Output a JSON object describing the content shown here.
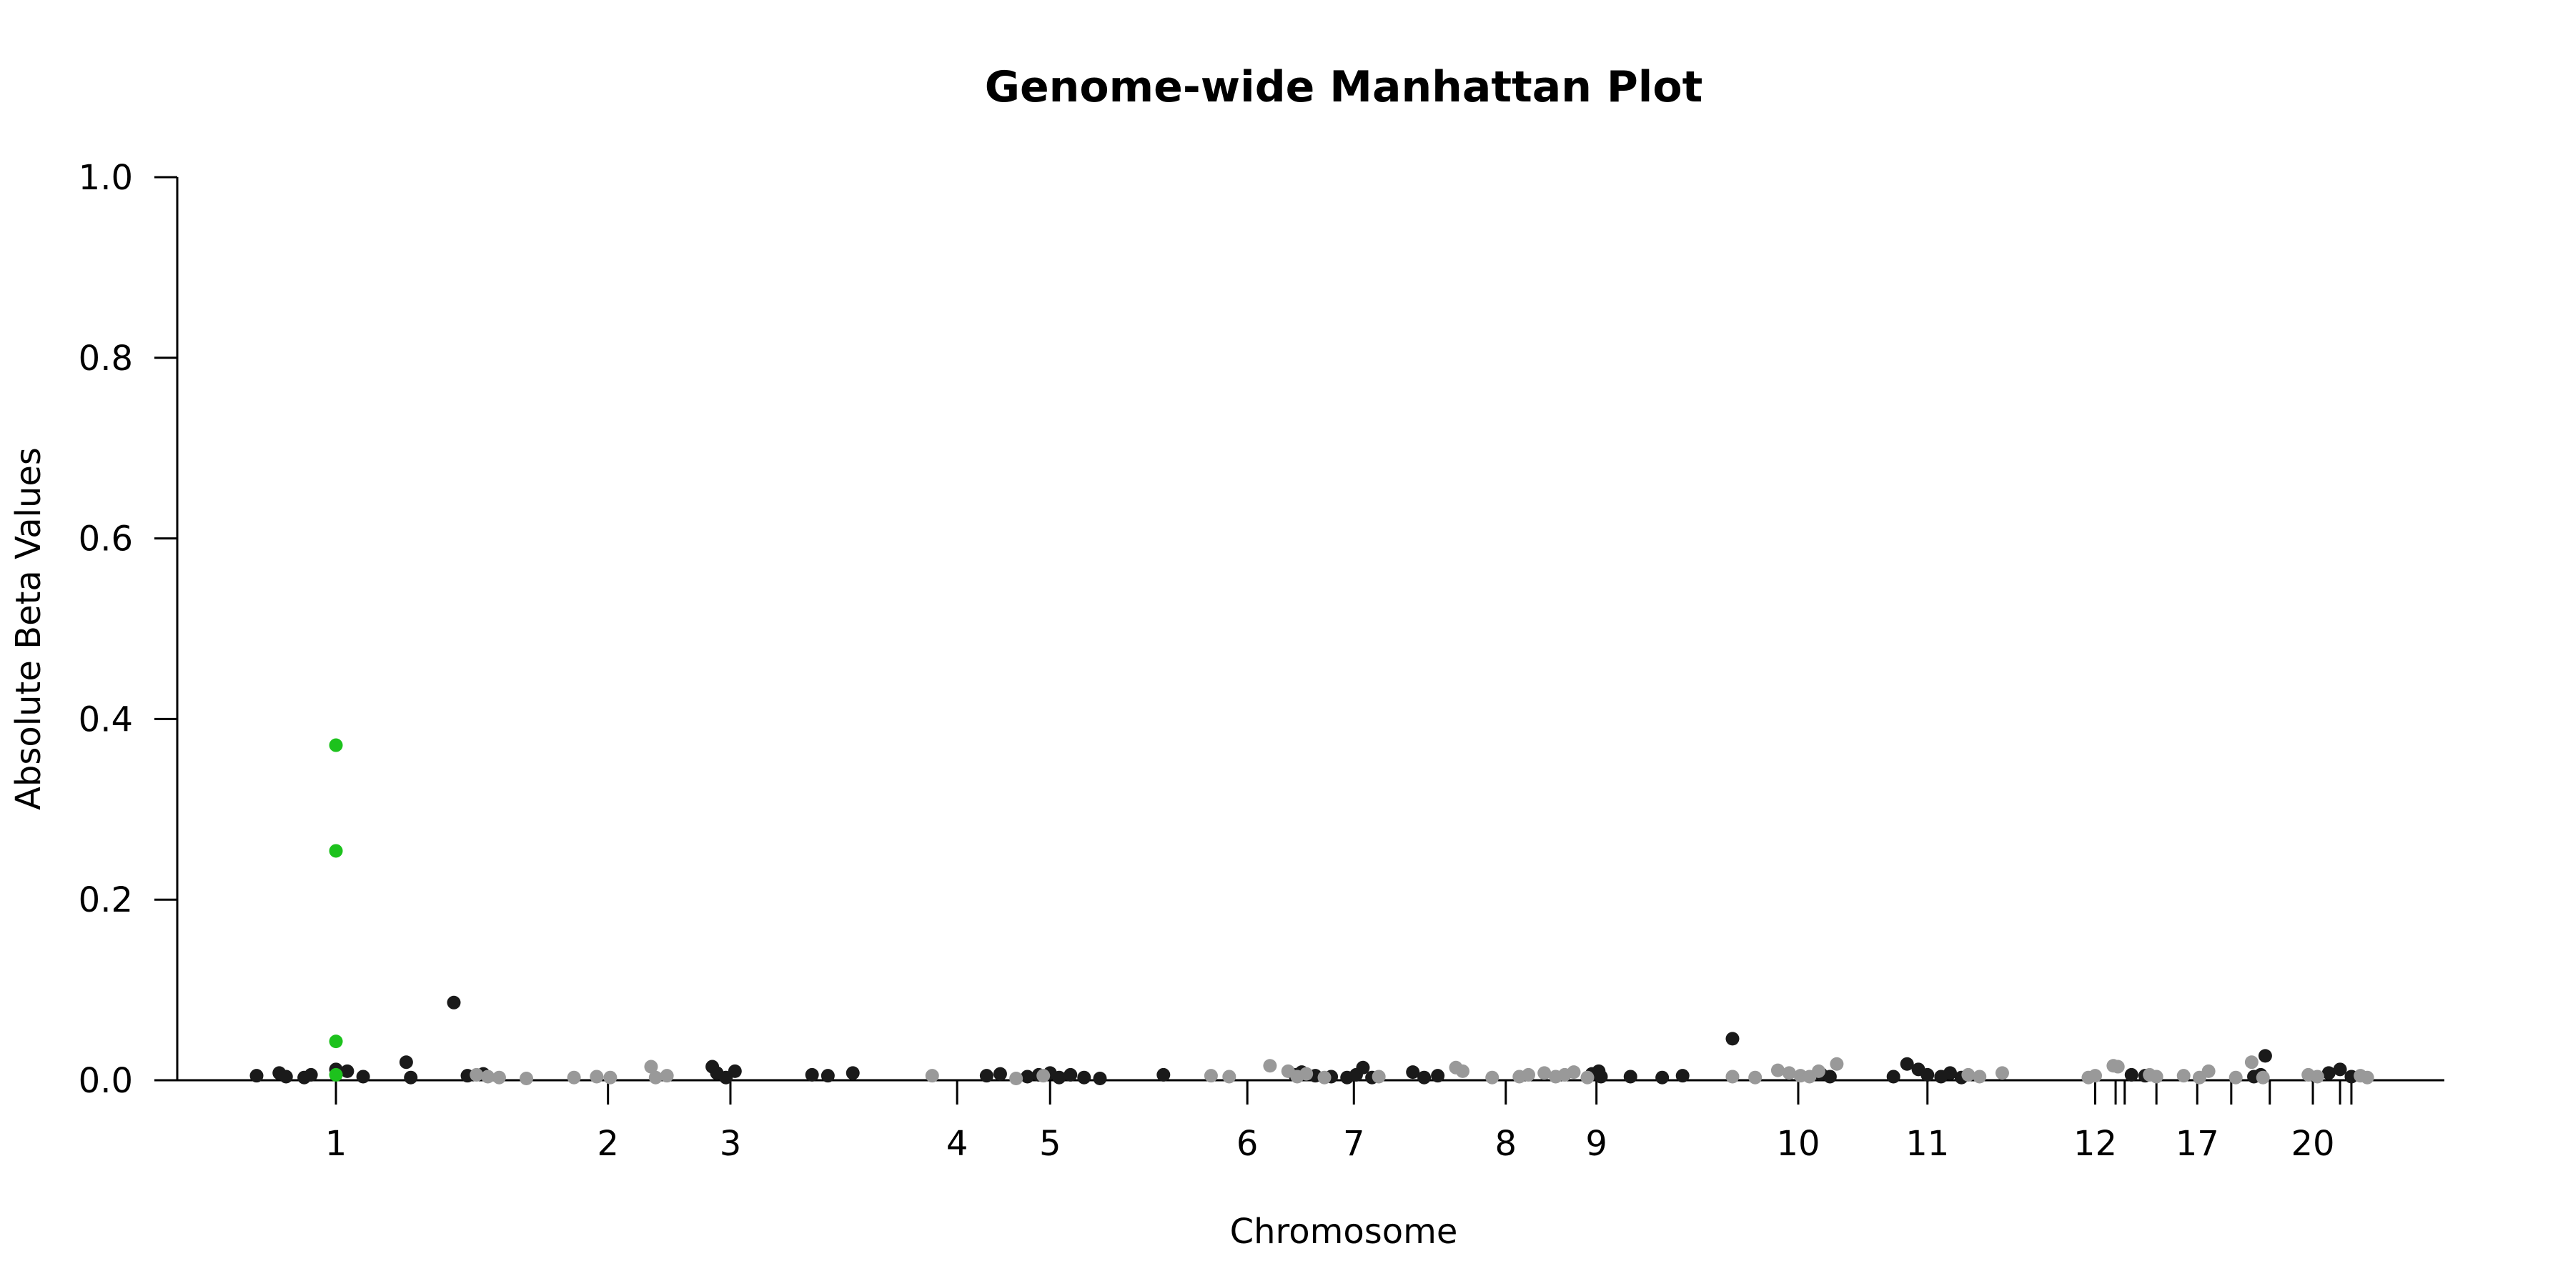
{
  "chart_data": {
    "type": "scatter",
    "title": "Genome-wide Manhattan Plot",
    "xlabel": "Chromosome",
    "ylabel": "Absolute Beta Values",
    "ylim": [
      0.0,
      1.0
    ],
    "y_ticks": [
      "0.0",
      "0.2",
      "0.4",
      "0.6",
      "0.8",
      "1.0"
    ],
    "xlim": [
      0,
      100
    ],
    "x_ticks": [
      {
        "label": "1",
        "x": 7.0
      },
      {
        "label": "2",
        "x": 19.0
      },
      {
        "label": "3",
        "x": 24.4
      },
      {
        "label": "4",
        "x": 34.4
      },
      {
        "label": "5",
        "x": 38.5
      },
      {
        "label": "6",
        "x": 47.2
      },
      {
        "label": "7",
        "x": 51.9
      },
      {
        "label": "8",
        "x": 58.6
      },
      {
        "label": "9",
        "x": 62.6
      },
      {
        "label": "10",
        "x": 71.5
      },
      {
        "label": "11",
        "x": 77.2
      },
      {
        "label": "12",
        "x": 84.6
      },
      {
        "label": "",
        "x": 85.5
      },
      {
        "label": "",
        "x": 85.9
      },
      {
        "label": "",
        "x": 87.3
      },
      {
        "label": "17",
        "x": 89.1
      },
      {
        "label": "",
        "x": 90.6
      },
      {
        "label": "",
        "x": 92.3
      },
      {
        "label": "20",
        "x": 94.2
      },
      {
        "label": "",
        "x": 95.4
      },
      {
        "label": "",
        "x": 95.9
      }
    ],
    "colors": {
      "odd": "#1a1a1a",
      "even": "#999999",
      "highlight": "#1dc21d"
    },
    "grid": false,
    "series": [
      {
        "color": "#1a1a1a",
        "points": [
          [
            3.5,
            0.005
          ],
          [
            4.5,
            0.008
          ],
          [
            4.8,
            0.004
          ],
          [
            5.6,
            0.003
          ],
          [
            5.9,
            0.006
          ],
          [
            7.0,
            0.012
          ],
          [
            7.5,
            0.01
          ],
          [
            8.2,
            0.004
          ],
          [
            10.1,
            0.02
          ],
          [
            10.3,
            0.003
          ],
          [
            12.2,
            0.086
          ],
          [
            12.8,
            0.005
          ],
          [
            13.5,
            0.007
          ],
          [
            23.6,
            0.015
          ],
          [
            23.8,
            0.008
          ],
          [
            24.2,
            0.003
          ],
          [
            24.6,
            0.01
          ],
          [
            28.0,
            0.006
          ],
          [
            28.7,
            0.005
          ],
          [
            29.8,
            0.008
          ],
          [
            35.7,
            0.005
          ],
          [
            36.3,
            0.007
          ],
          [
            37.5,
            0.004
          ],
          [
            38.0,
            0.006
          ],
          [
            38.5,
            0.008
          ],
          [
            38.9,
            0.003
          ],
          [
            39.4,
            0.006
          ],
          [
            40.0,
            0.003
          ],
          [
            40.7,
            0.002
          ],
          [
            43.5,
            0.006
          ],
          [
            49.3,
            0.006
          ],
          [
            49.6,
            0.009
          ],
          [
            50.2,
            0.005
          ],
          [
            50.9,
            0.004
          ],
          [
            51.6,
            0.003
          ],
          [
            52.0,
            0.006
          ],
          [
            52.3,
            0.014
          ],
          [
            52.7,
            0.003
          ],
          [
            54.5,
            0.009
          ],
          [
            55.0,
            0.003
          ],
          [
            55.6,
            0.005
          ],
          [
            62.4,
            0.007
          ],
          [
            62.7,
            0.01
          ],
          [
            62.8,
            0.004
          ],
          [
            64.1,
            0.004
          ],
          [
            65.5,
            0.003
          ],
          [
            66.4,
            0.005
          ],
          [
            68.6,
            0.046
          ],
          [
            72.5,
            0.007
          ],
          [
            72.9,
            0.004
          ],
          [
            75.7,
            0.004
          ],
          [
            76.3,
            0.018
          ],
          [
            76.8,
            0.012
          ],
          [
            77.2,
            0.006
          ],
          [
            77.8,
            0.004
          ],
          [
            78.2,
            0.008
          ],
          [
            78.7,
            0.003
          ],
          [
            86.2,
            0.006
          ],
          [
            86.8,
            0.005
          ],
          [
            91.6,
            0.004
          ],
          [
            91.9,
            0.006
          ],
          [
            92.1,
            0.027
          ],
          [
            94.9,
            0.008
          ],
          [
            95.4,
            0.012
          ],
          [
            95.9,
            0.004
          ]
        ]
      },
      {
        "color": "#999999",
        "points": [
          [
            13.2,
            0.006
          ],
          [
            13.7,
            0.004
          ],
          [
            14.2,
            0.003
          ],
          [
            15.4,
            0.002
          ],
          [
            17.5,
            0.003
          ],
          [
            18.5,
            0.004
          ],
          [
            19.1,
            0.003
          ],
          [
            20.9,
            0.015
          ],
          [
            21.1,
            0.003
          ],
          [
            21.6,
            0.005
          ],
          [
            33.3,
            0.005
          ],
          [
            37.0,
            0.002
          ],
          [
            38.2,
            0.005
          ],
          [
            45.6,
            0.005
          ],
          [
            46.4,
            0.004
          ],
          [
            48.2,
            0.016
          ],
          [
            49.0,
            0.01
          ],
          [
            49.4,
            0.004
          ],
          [
            49.8,
            0.007
          ],
          [
            50.6,
            0.003
          ],
          [
            53.0,
            0.004
          ],
          [
            56.4,
            0.014
          ],
          [
            56.7,
            0.01
          ],
          [
            58.0,
            0.003
          ],
          [
            59.2,
            0.004
          ],
          [
            59.6,
            0.006
          ],
          [
            60.3,
            0.008
          ],
          [
            60.8,
            0.004
          ],
          [
            61.2,
            0.006
          ],
          [
            61.6,
            0.009
          ],
          [
            62.2,
            0.003
          ],
          [
            68.6,
            0.004
          ],
          [
            69.6,
            0.003
          ],
          [
            70.6,
            0.011
          ],
          [
            71.1,
            0.008
          ],
          [
            71.6,
            0.005
          ],
          [
            72.0,
            0.004
          ],
          [
            72.4,
            0.01
          ],
          [
            73.2,
            0.018
          ],
          [
            79.0,
            0.006
          ],
          [
            79.5,
            0.004
          ],
          [
            80.5,
            0.008
          ],
          [
            84.3,
            0.003
          ],
          [
            84.6,
            0.005
          ],
          [
            85.4,
            0.016
          ],
          [
            85.6,
            0.015
          ],
          [
            87.0,
            0.006
          ],
          [
            87.3,
            0.004
          ],
          [
            88.5,
            0.005
          ],
          [
            89.2,
            0.003
          ],
          [
            89.6,
            0.01
          ],
          [
            90.8,
            0.003
          ],
          [
            91.5,
            0.02
          ],
          [
            92.0,
            0.003
          ],
          [
            94.0,
            0.006
          ],
          [
            94.4,
            0.004
          ],
          [
            96.3,
            0.005
          ],
          [
            96.6,
            0.003
          ]
        ]
      },
      {
        "color": "#1dc21d",
        "points": [
          [
            7.0,
            0.371
          ],
          [
            7.0,
            0.254
          ],
          [
            7.0,
            0.043
          ],
          [
            7.0,
            0.006
          ]
        ]
      }
    ]
  }
}
